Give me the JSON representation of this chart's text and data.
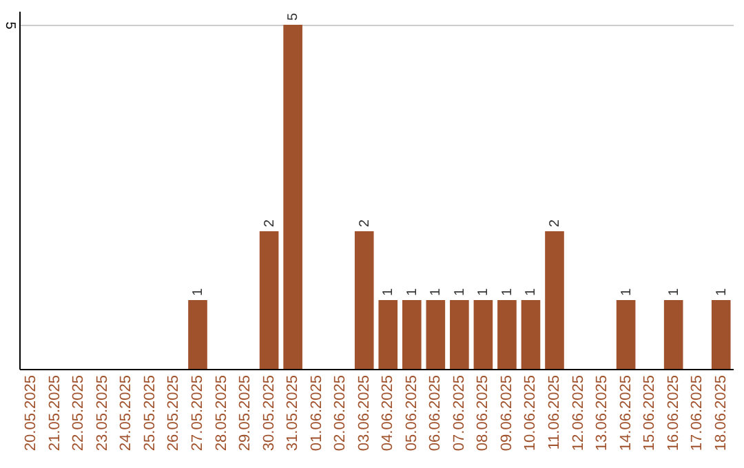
{
  "chart_data": {
    "type": "bar",
    "categories": [
      "20.05.2025",
      "21.05.2025",
      "22.05.2025",
      "23.05.2025",
      "24.05.2025",
      "25.05.2025",
      "26.05.2025",
      "27.05.2025",
      "28.05.2025",
      "29.05.2025",
      "30.05.2025",
      "31.05.2025",
      "01.06.2025",
      "02.06.2025",
      "03.06.2025",
      "04.06.2025",
      "05.06.2025",
      "06.06.2025",
      "07.06.2025",
      "08.06.2025",
      "09.06.2025",
      "10.06.2025",
      "11.06.2025",
      "12.06.2025",
      "13.06.2025",
      "14.06.2025",
      "15.06.2025",
      "16.06.2025",
      "17.06.2025",
      "18.06.2025"
    ],
    "values": [
      0,
      0,
      0,
      0,
      0,
      0,
      0,
      1,
      0,
      0,
      2,
      5,
      0,
      0,
      2,
      1,
      1,
      1,
      1,
      1,
      1,
      1,
      2,
      0,
      0,
      1,
      0,
      1,
      0,
      1
    ],
    "value_labels": [
      null,
      null,
      null,
      null,
      null,
      null,
      null,
      "1",
      null,
      null,
      "2",
      "5",
      null,
      null,
      "2",
      "1",
      "1",
      "1",
      "1",
      "1",
      "1",
      "1",
      "2",
      null,
      null,
      "1",
      null,
      "1",
      null,
      "1"
    ],
    "color": "#a0522d",
    "ylim": [
      0,
      5.2
    ],
    "yticks": [
      5
    ],
    "grid": "y"
  }
}
